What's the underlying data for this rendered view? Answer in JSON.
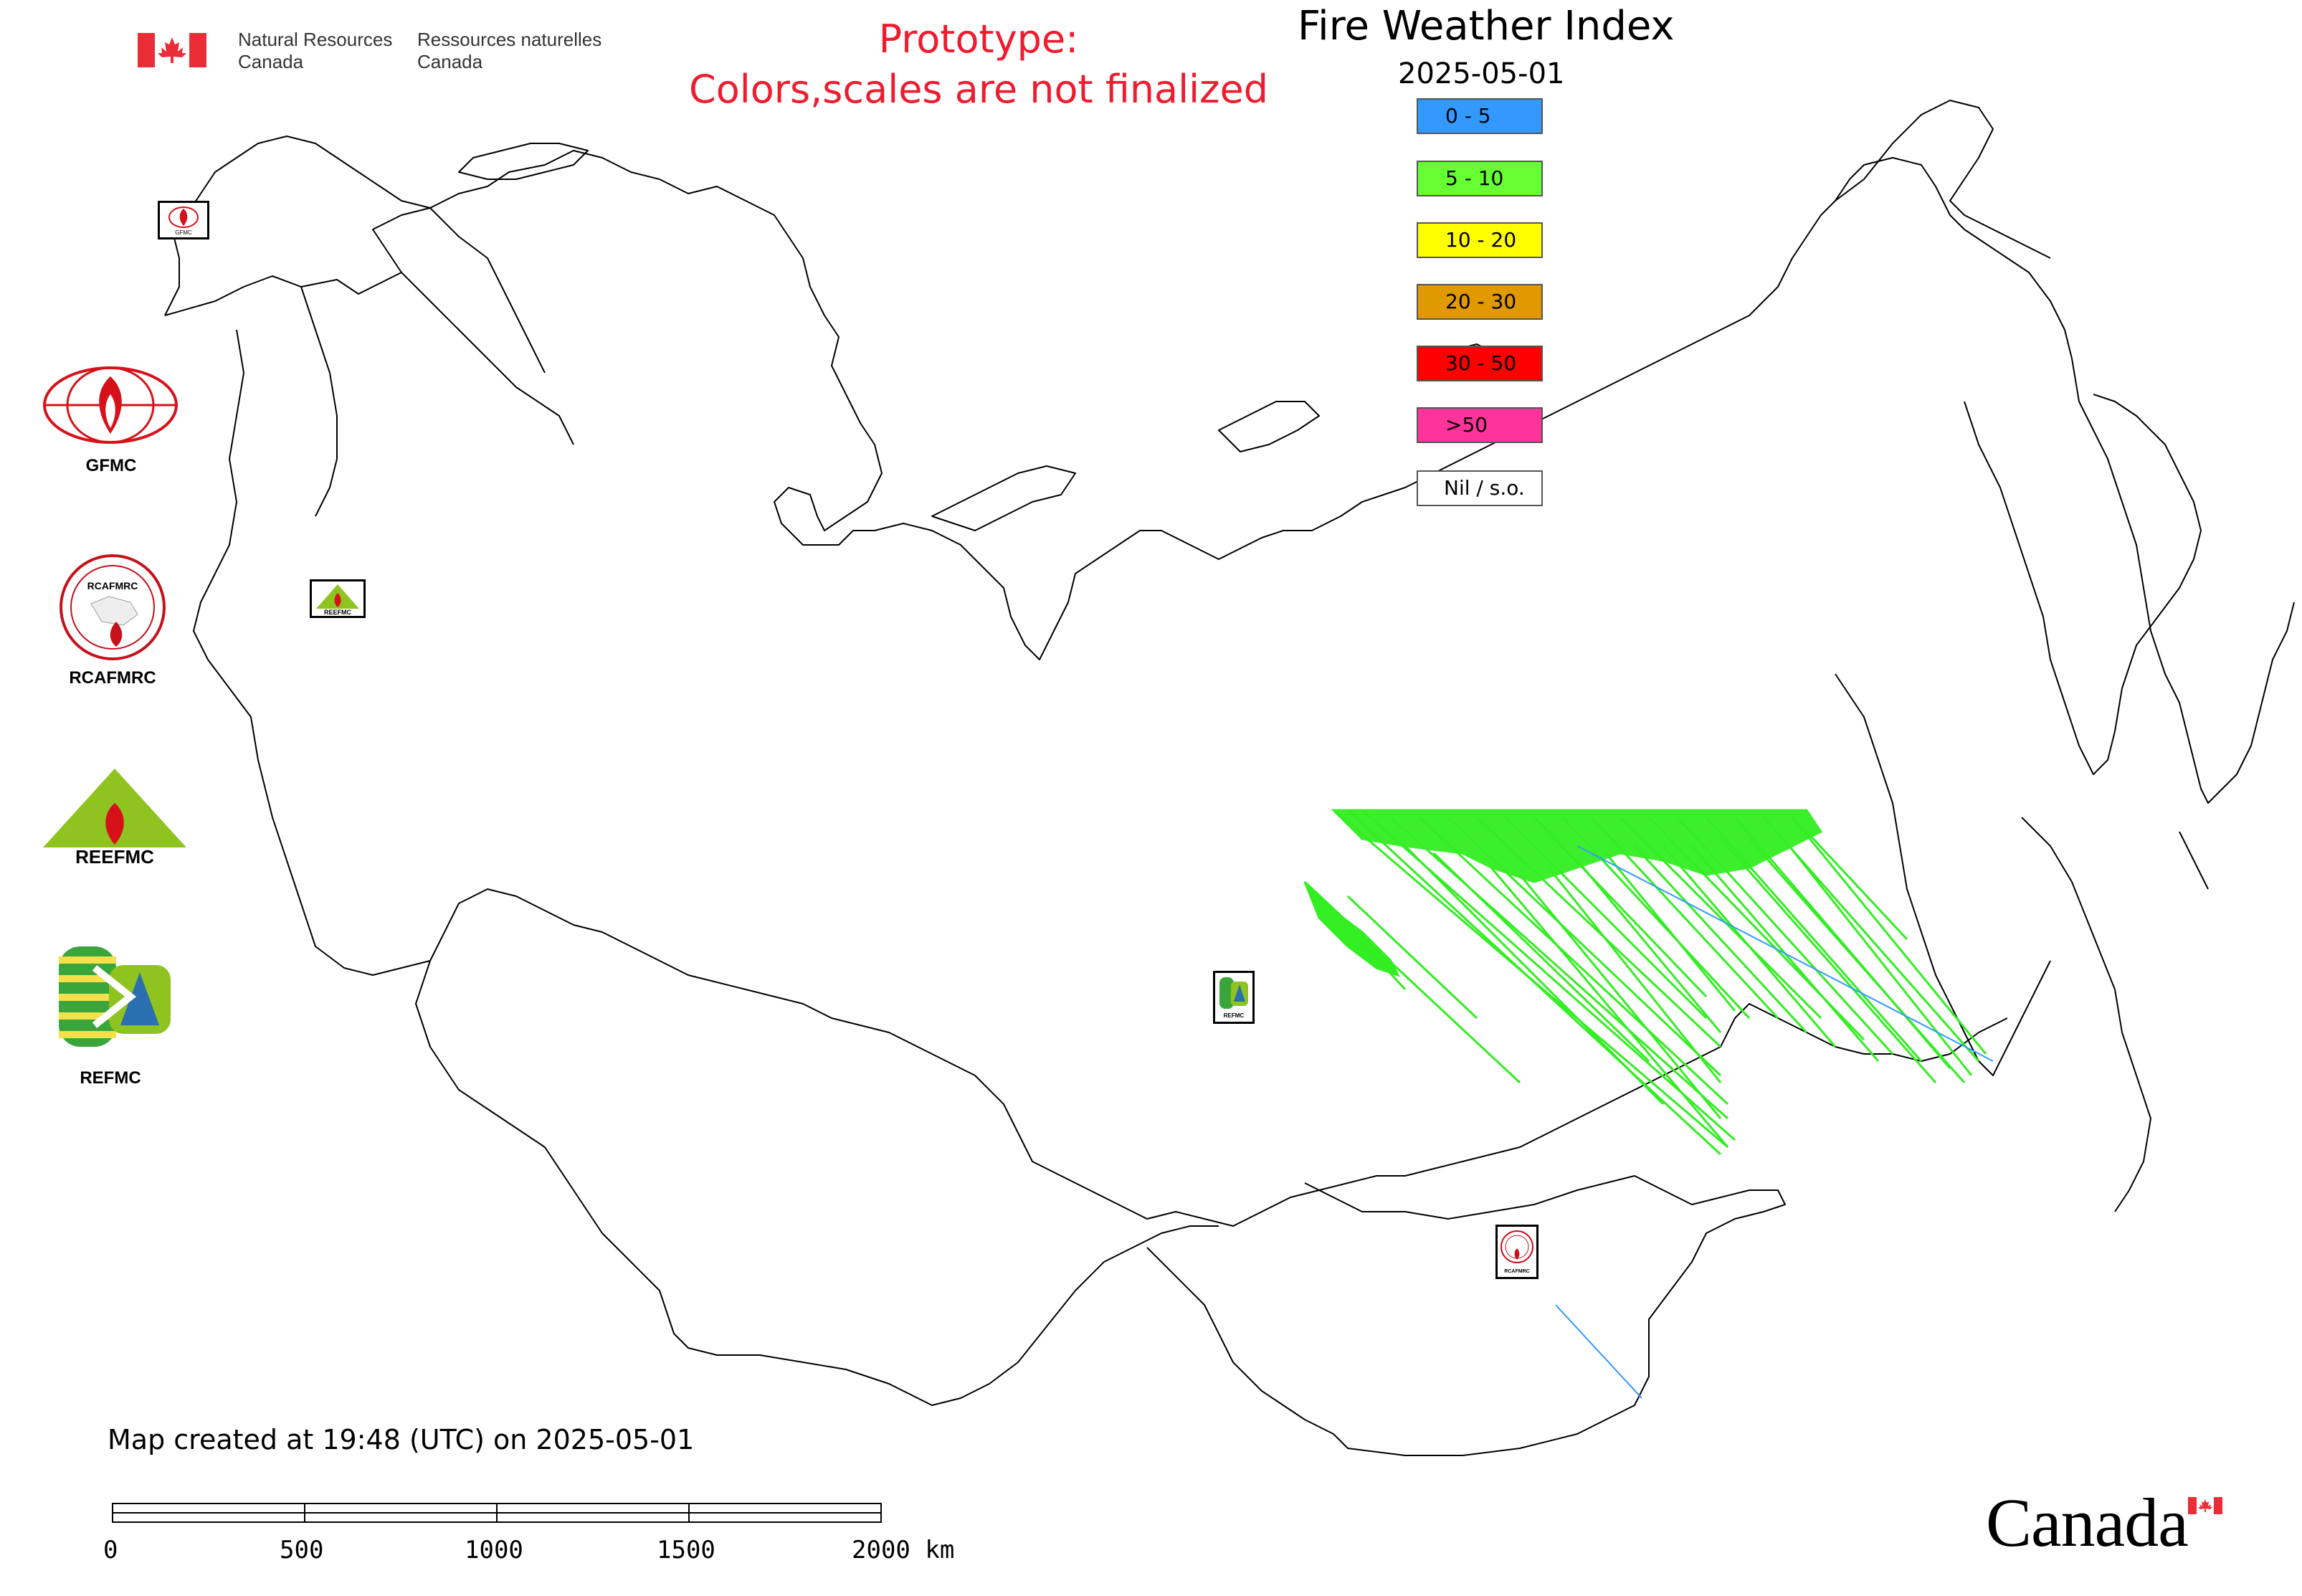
{
  "header": {
    "agency_en_line1": "Natural Resources",
    "agency_en_line2": "Canada",
    "agency_fr_line1": "Ressources naturelles",
    "agency_fr_line2": "Canada",
    "prototype_line1": "Prototype:",
    "prototype_line2": "Colors,scales are not finalized",
    "title": "Fire Weather Index",
    "date": "2025-05-01"
  },
  "legend": {
    "items": [
      {
        "label": "0 - 5",
        "color": "#3399ff"
      },
      {
        "label": "5 - 10",
        "color": "#66ff33"
      },
      {
        "label": "10 - 20",
        "color": "#ffff00"
      },
      {
        "label": "20 - 30",
        "color": "#e09a00"
      },
      {
        "label": "30 - 50",
        "color": "#ff0000"
      },
      {
        "label": ">50",
        "color": "#ff3399"
      },
      {
        "label": "Nil / s.o.",
        "color": "#ffffff"
      }
    ]
  },
  "logos": {
    "gfmc_label": "GFMC",
    "rcafmrc_label": "RCAFMRC",
    "reefmc_label": "REEFMC",
    "refmc_label": "REFMC",
    "reefmc_logo_text": "REEFMC",
    "rcafmrc_logo_text": "RCAFMRC",
    "map_marker_gfmc": "GFMC",
    "map_marker_reefmc": "REEFMC",
    "map_marker_refmc": "REFMC",
    "map_marker_rcafmrc": "RCAFMRC"
  },
  "footer": {
    "created_text": "Map created at 19:48 (UTC) on 2025-05-01",
    "scale_labels": [
      "0",
      "500",
      "1000",
      "1500",
      "2000 km"
    ],
    "wordmark": "Canada"
  }
}
